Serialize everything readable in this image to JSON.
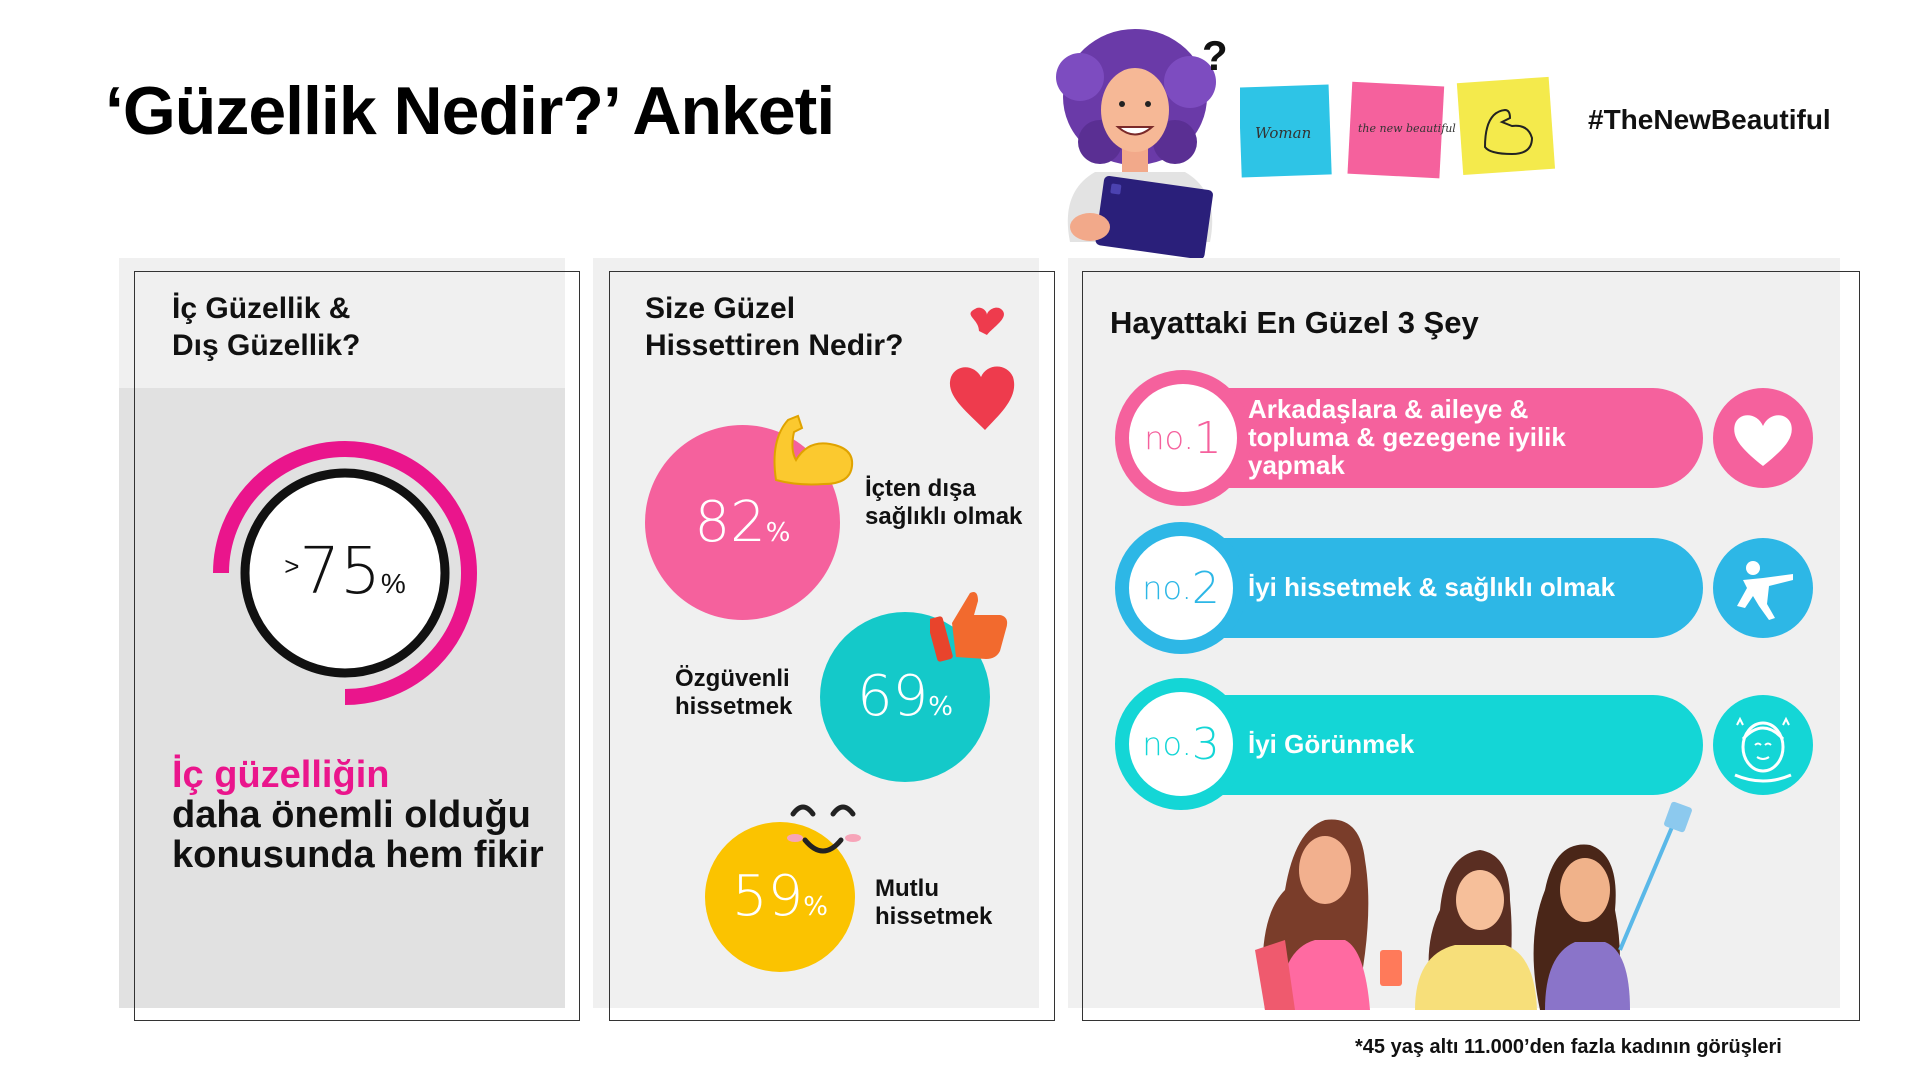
{
  "header": {
    "title": "‘Güzellik Nedir?’ Anketi",
    "hashtag": "#TheNewBeautiful",
    "question_mark": "?",
    "sticky_notes": [
      "Woman",
      "the new beautiful"
    ]
  },
  "panel_inner_outer": {
    "heading_line1": "İç Güzellik &",
    "heading_line2": "Dış Güzellik?",
    "ring": {
      "prefix": ">",
      "value": "75",
      "unit": "%",
      "fraction": 0.75
    },
    "statement_highlight": "İç güzelliğin",
    "statement_rest": "daha önemli olduğu konusunda hem fikir"
  },
  "panel_feel_beautiful": {
    "heading_line1": "Size Güzel",
    "heading_line2": "Hissettiren Nedir?",
    "stats": [
      {
        "value": "82",
        "unit": "%",
        "label_line1": "İçten dışa",
        "label_line2": "sağlıklı olmak",
        "color": "#f5619d"
      },
      {
        "value": "69",
        "unit": "%",
        "label_line1": "Özgüvenli",
        "label_line2": "hissetmek",
        "color": "#14c9c9"
      },
      {
        "value": "59",
        "unit": "%",
        "label_line1": "Mutlu",
        "label_line2": "hissetmek",
        "color": "#fbc300"
      }
    ]
  },
  "panel_top3": {
    "heading": "Hayattaki En Güzel 3 Şey",
    "ranks": [
      {
        "no": "no.",
        "n": "1",
        "text_line1": "Arkadaşlara & aileye &",
        "text_line2": "topluma & gezegene iyilik",
        "text_line3": "yapmak",
        "color": "#f5619d",
        "icon": "heart-icon"
      },
      {
        "no": "no.",
        "n": "2",
        "text_line1": "İyi hissetmek & sağlıklı olmak",
        "color": "#2db7e6",
        "icon": "yoga-pose-icon"
      },
      {
        "no": "no.",
        "n": "3",
        "text_line1": "İyi Görünmek",
        "color": "#14d6d6",
        "icon": "face-care-icon"
      }
    ]
  },
  "footnote": "*45 yaş altı 11.000’den fazla kadının görüşleri",
  "colors": {
    "magenta": "#ea158c",
    "pink": "#f5619d",
    "blue": "#2db7e6",
    "teal": "#14d6d6",
    "yellow": "#fbc300"
  }
}
